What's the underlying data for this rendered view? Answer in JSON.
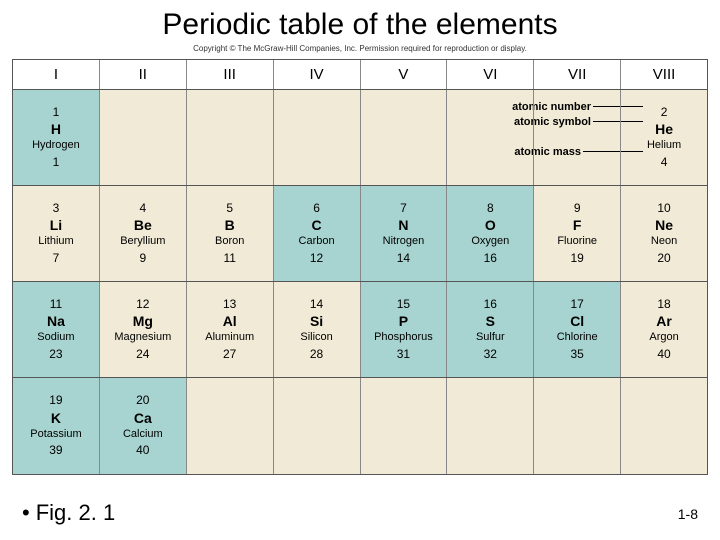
{
  "title": "Periodic table of the elements",
  "copyright": "Copyright © The McGraw-Hill Companies, Inc. Permission required for reproduction or display.",
  "columns": [
    "I",
    "II",
    "III",
    "IV",
    "V",
    "VI",
    "VII",
    "VIII"
  ],
  "legend": {
    "atomic_number_label": "atomic number",
    "atomic_symbol_label": "atomic symbol",
    "atomic_mass_label": "atomic mass"
  },
  "colors": {
    "highlight": "#a7d4d0",
    "table_bg": "#f0ead6",
    "border": "#555555",
    "cell_border": "#888888",
    "page_bg": "#ffffff"
  },
  "rows": [
    [
      {
        "num": "1",
        "sym": "H",
        "name": "Hydrogen",
        "mass": "1",
        "hl": true
      },
      null,
      null,
      null,
      null,
      null,
      null,
      {
        "num": "2",
        "sym": "He",
        "name": "Helium",
        "mass": "4",
        "hl": false,
        "is_key": true
      }
    ],
    [
      {
        "num": "3",
        "sym": "Li",
        "name": "Lithium",
        "mass": "7",
        "hl": false
      },
      {
        "num": "4",
        "sym": "Be",
        "name": "Beryllium",
        "mass": "9",
        "hl": false
      },
      {
        "num": "5",
        "sym": "B",
        "name": "Boron",
        "mass": "11",
        "hl": false
      },
      {
        "num": "6",
        "sym": "C",
        "name": "Carbon",
        "mass": "12",
        "hl": true
      },
      {
        "num": "7",
        "sym": "N",
        "name": "Nitrogen",
        "mass": "14",
        "hl": true
      },
      {
        "num": "8",
        "sym": "O",
        "name": "Oxygen",
        "mass": "16",
        "hl": true
      },
      {
        "num": "9",
        "sym": "F",
        "name": "Fluorine",
        "mass": "19",
        "hl": false
      },
      {
        "num": "10",
        "sym": "Ne",
        "name": "Neon",
        "mass": "20",
        "hl": false
      }
    ],
    [
      {
        "num": "11",
        "sym": "Na",
        "name": "Sodium",
        "mass": "23",
        "hl": true
      },
      {
        "num": "12",
        "sym": "Mg",
        "name": "Magnesium",
        "mass": "24",
        "hl": false
      },
      {
        "num": "13",
        "sym": "Al",
        "name": "Aluminum",
        "mass": "27",
        "hl": false
      },
      {
        "num": "14",
        "sym": "Si",
        "name": "Silicon",
        "mass": "28",
        "hl": false
      },
      {
        "num": "15",
        "sym": "P",
        "name": "Phosphorus",
        "mass": "31",
        "hl": true
      },
      {
        "num": "16",
        "sym": "S",
        "name": "Sulfur",
        "mass": "32",
        "hl": true
      },
      {
        "num": "17",
        "sym": "Cl",
        "name": "Chlorine",
        "mass": "35",
        "hl": true
      },
      {
        "num": "18",
        "sym": "Ar",
        "name": "Argon",
        "mass": "40",
        "hl": false
      }
    ],
    [
      {
        "num": "19",
        "sym": "K",
        "name": "Potassium",
        "mass": "39",
        "hl": true
      },
      {
        "num": "20",
        "sym": "Ca",
        "name": "Calcium",
        "mass": "40",
        "hl": true
      },
      null,
      null,
      null,
      null,
      null,
      null
    ]
  ],
  "figure_label": "Fig. 2. 1",
  "page_number": "1-8"
}
